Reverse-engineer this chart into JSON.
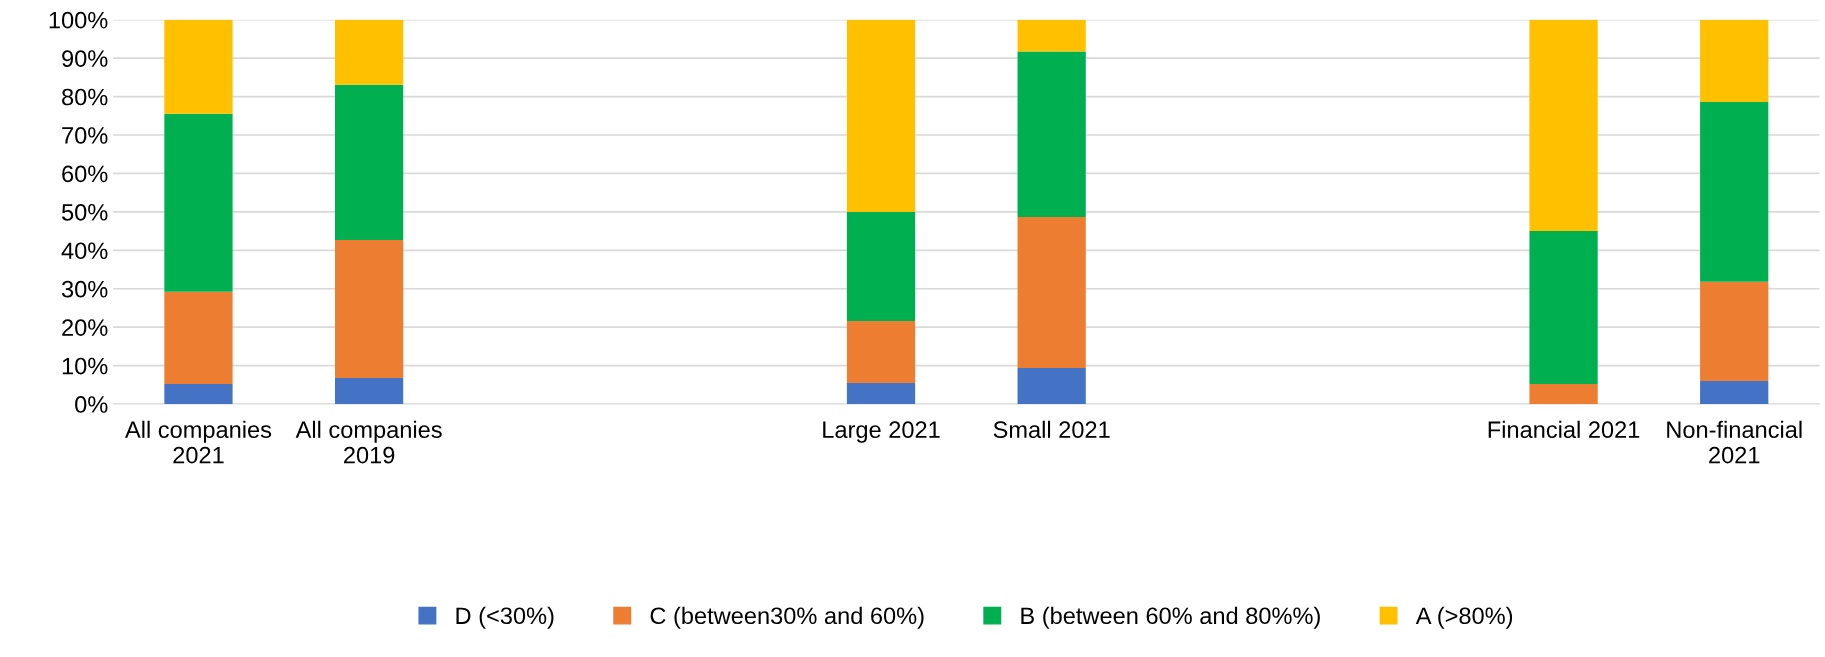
{
  "chart_data": {
    "type": "bar",
    "stacked": true,
    "categories": [
      "All companies 2021",
      "All companies 2019",
      null,
      null,
      "Large 2021",
      "Small 2021",
      null,
      null,
      "Financial 2021",
      "Non-financial 2021"
    ],
    "series": [
      {
        "name": "D (<30%)",
        "color": "#4472c4",
        "values": [
          5.2,
          6.8,
          null,
          null,
          5.5,
          9.4,
          null,
          null,
          0,
          6
        ]
      },
      {
        "name": "C (between30% and 60%)",
        "color": "#ed7d31",
        "values": [
          24,
          35.9,
          null,
          null,
          16.1,
          39.3,
          null,
          null,
          5.2,
          25.8
        ]
      },
      {
        "name": "B (between 60% and 80%%)",
        "color": "#00b050",
        "values": [
          46.3,
          40.4,
          null,
          null,
          28.4,
          43,
          null,
          null,
          39.8,
          46.8
        ]
      },
      {
        "name": "A (>80%)",
        "color": "#ffc000",
        "values": [
          24.5,
          16.9,
          null,
          null,
          50,
          8.3,
          null,
          null,
          55,
          21.4
        ]
      }
    ],
    "ylim": [
      0,
      100
    ],
    "yticks": [
      {
        "value": 0,
        "label": "0%"
      },
      {
        "value": 10,
        "label": "10%"
      },
      {
        "value": 20,
        "label": "20%"
      },
      {
        "value": 30,
        "label": "30%"
      },
      {
        "value": 40,
        "label": "40%"
      },
      {
        "value": 50,
        "label": "50%"
      },
      {
        "value": 60,
        "label": "60%"
      },
      {
        "value": 70,
        "label": "70%"
      },
      {
        "value": 80,
        "label": "80%"
      },
      {
        "value": 90,
        "label": "90%"
      },
      {
        "value": 100,
        "label": "100%"
      }
    ],
    "grid": "y",
    "legend": "bottom"
  }
}
